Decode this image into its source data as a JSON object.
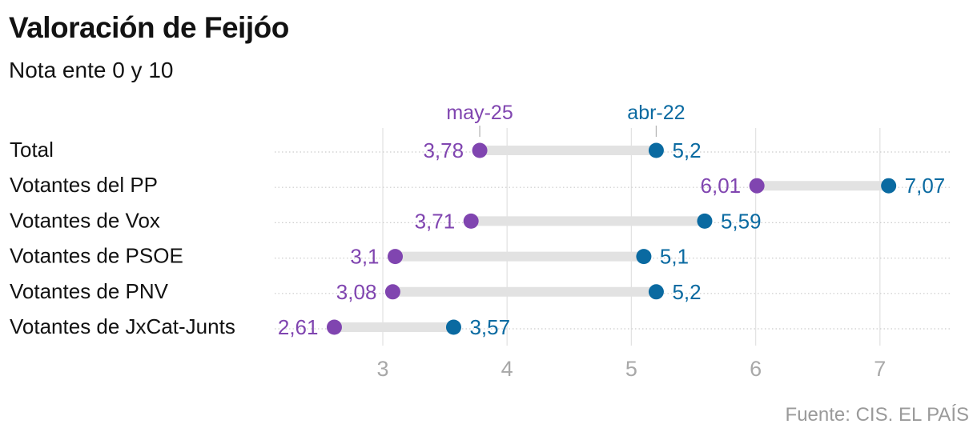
{
  "title": "Valoración de Feijóo",
  "subtitle": "Nota ente 0 y 10",
  "source": "Fuente: CIS. EL PAÍS",
  "colors": {
    "may25": "#8045b0",
    "abr22": "#0a6aa1",
    "connector": "#e2e2e2",
    "grid": "#e3e3e3",
    "dots": "#cccccc",
    "tick": "#a8a8a8"
  },
  "chart_data": {
    "type": "dumbbell",
    "title": "Valoración de Feijóo",
    "subtitle": "Nota ente 0 y 10",
    "categories": [
      "Total",
      "Votantes del PP",
      "Votantes de Vox",
      "Votantes de PSOE",
      "Votantes de PNV",
      "Votantes de JxCat-Junts"
    ],
    "series": [
      {
        "name": "may-25",
        "values": [
          3.78,
          6.01,
          3.71,
          3.1,
          3.08,
          2.61
        ],
        "labels": [
          "3,78",
          "6,01",
          "3,71",
          "3,1",
          "3,08",
          "2,61"
        ]
      },
      {
        "name": "abr-22",
        "values": [
          5.2,
          7.07,
          5.59,
          5.1,
          5.2,
          3.57
        ],
        "labels": [
          "5,2",
          "7,07",
          "5,59",
          "5,1",
          "5,2",
          "3,57"
        ]
      }
    ],
    "xticks": [
      3,
      4,
      5,
      6,
      7
    ],
    "xlim": [
      2.15,
      7.55
    ],
    "legend_position": "top"
  }
}
